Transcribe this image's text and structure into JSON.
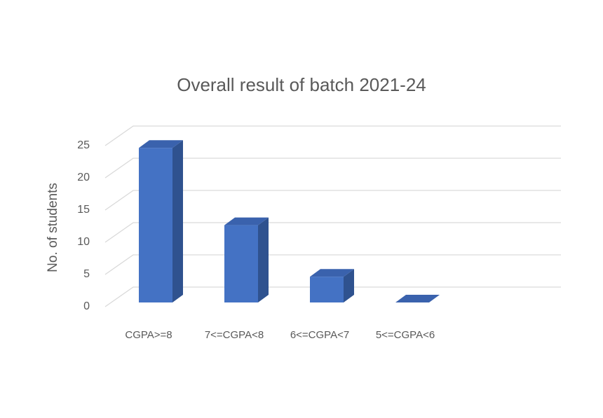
{
  "chart_data": {
    "type": "bar3d",
    "title": "Overall result of batch 2021-24",
    "y_label": "No. of students",
    "categories": [
      "CGPA>=8",
      "7<=CGPA<8",
      "6<=CGPA<7",
      "5<=CGPA<6"
    ],
    "values": [
      24,
      12,
      4,
      0
    ],
    "color": "#4472c4",
    "ylim": [
      0,
      25
    ],
    "yticks": [
      0,
      5,
      10,
      15,
      20,
      25
    ],
    "grid": true
  }
}
